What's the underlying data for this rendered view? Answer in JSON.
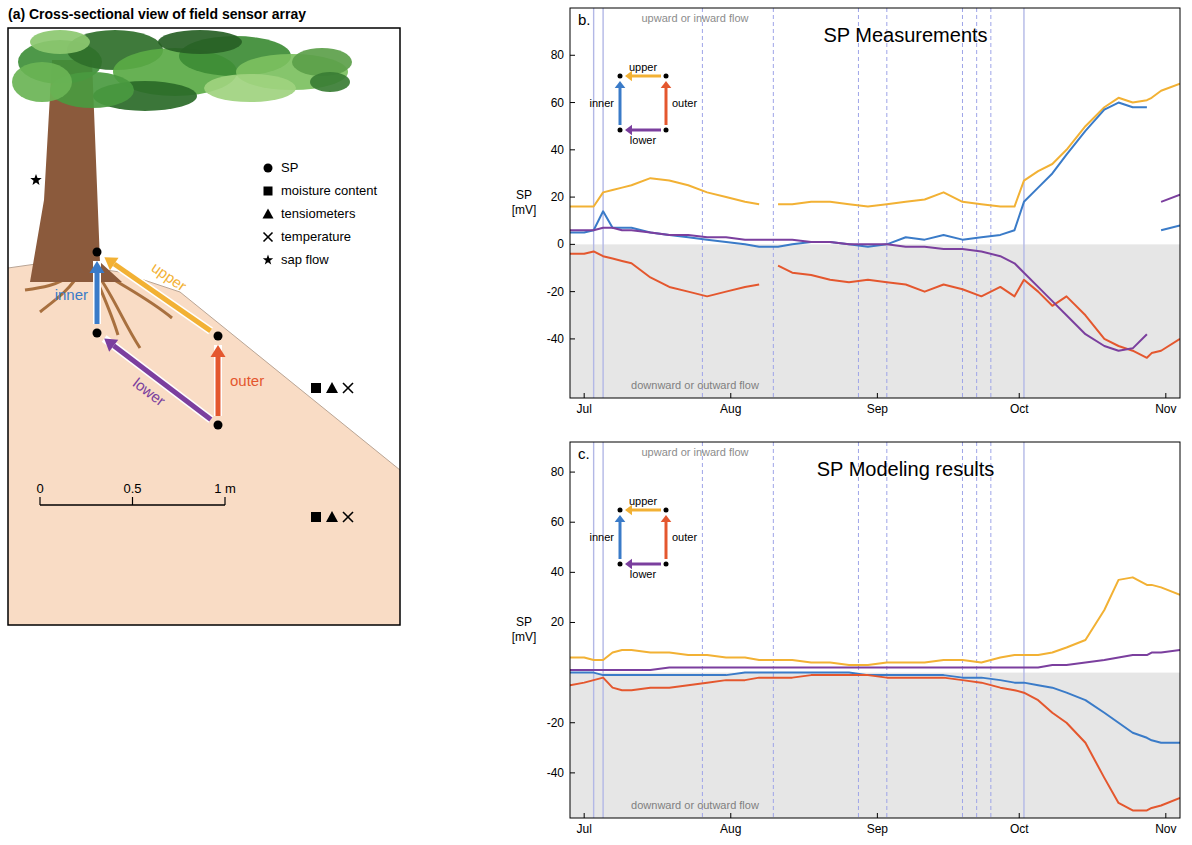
{
  "diagram": {
    "title": "(a) Cross-sectional view of field sensor array",
    "legend": [
      {
        "marker": "circle",
        "label": "SP"
      },
      {
        "marker": "square",
        "label": "moisture content"
      },
      {
        "marker": "triangle",
        "label": "tensiometers"
      },
      {
        "marker": "cross",
        "label": "temperature"
      },
      {
        "marker": "star",
        "label": "sap flow"
      }
    ],
    "arrows": [
      {
        "label": "inner",
        "color": "#3a7bc8"
      },
      {
        "label": "upper",
        "color": "#f2b134"
      },
      {
        "label": "outer",
        "color": "#e4572e"
      },
      {
        "label": "lower",
        "color": "#7b3f9e"
      }
    ],
    "scale_bar": {
      "ticks": [
        0,
        0.5,
        {
          "value": 1,
          "label": "1 m"
        }
      ]
    }
  },
  "chart_data": [
    {
      "type": "line",
      "panel": "b.",
      "title": "SP Measurements",
      "y_label": "SP [mV]",
      "annotations": [
        "upward or inward flow",
        "downward or outward flow"
      ],
      "legend": "upper left",
      "grid": false,
      "x": [
        -3,
        0,
        2,
        4,
        6,
        8,
        10,
        14,
        18,
        22,
        26,
        30,
        34,
        37,
        39,
        41,
        44,
        48,
        52,
        56,
        60,
        64,
        68,
        72,
        76,
        80,
        84,
        88,
        91,
        93,
        96,
        99,
        102,
        106,
        110,
        113,
        116,
        119,
        120,
        122,
        126
      ],
      "xlim": [
        -3,
        126
      ],
      "xticks": [
        {
          "value": 0,
          "label": "Jul"
        },
        {
          "value": 31,
          "label": "Aug"
        },
        {
          "value": 62,
          "label": "Sep"
        },
        {
          "value": 92,
          "label": "Oct"
        },
        {
          "value": 123,
          "label": "Nov"
        }
      ],
      "ylim": [
        -65,
        100
      ],
      "yticks": [
        -40,
        -20,
        0,
        20,
        40,
        60,
        80
      ],
      "series": [
        {
          "name": "upper",
          "color": "#f2b134",
          "values": [
            16,
            16,
            16,
            22,
            23,
            24,
            25,
            28,
            27,
            25,
            22,
            20,
            18,
            17,
            null,
            17,
            17,
            18,
            18,
            17,
            16,
            17,
            18,
            19,
            22,
            18,
            17,
            16,
            16,
            27,
            31,
            34,
            40,
            50,
            58,
            62,
            60,
            61,
            62,
            65,
            68
          ]
        },
        {
          "name": "inner",
          "color": "#3a7bc8",
          "values": [
            5,
            5,
            6,
            14,
            7,
            7,
            7,
            5,
            4,
            3,
            2,
            1,
            0,
            -1,
            -1,
            -1,
            0,
            1,
            1,
            0,
            -1,
            0,
            3,
            2,
            4,
            2,
            3,
            4,
            6,
            18,
            24,
            30,
            38,
            48,
            57,
            60,
            58,
            58,
            null,
            6,
            8
          ]
        },
        {
          "name": "outer",
          "color": "#e4572e",
          "values": [
            -4,
            -4,
            -3,
            -5,
            -6,
            -7,
            -8,
            -14,
            -18,
            -20,
            -22,
            -20,
            -18,
            -17,
            null,
            -9,
            -12,
            -13,
            -15,
            -16,
            -15,
            -16,
            -17,
            -20,
            -17,
            -19,
            -22,
            -18,
            -22,
            -15,
            -20,
            -26,
            -22,
            -30,
            -40,
            -43,
            -45,
            -48,
            -46,
            -45,
            -40
          ]
        },
        {
          "name": "lower",
          "color": "#7b3f9e",
          "values": [
            6,
            6,
            6,
            7,
            7,
            6,
            6,
            5,
            4,
            4,
            3,
            3,
            2,
            2,
            2,
            2,
            2,
            1,
            1,
            0,
            0,
            0,
            -1,
            -1,
            -2,
            -2,
            -3,
            -5,
            -8,
            -12,
            -18,
            -24,
            -30,
            -38,
            -43,
            -45,
            -44,
            -38,
            null,
            18,
            21
          ]
        }
      ],
      "event_lines": [
        {
          "x": 2,
          "line_style": "solid"
        },
        {
          "x": 4,
          "line_style": "solid"
        },
        {
          "x": 25,
          "line_style": "dashed"
        },
        {
          "x": 40,
          "line_style": "dashed"
        },
        {
          "x": 58,
          "line_style": "dashed"
        },
        {
          "x": 64,
          "line_style": "dashed"
        },
        {
          "x": 80,
          "line_style": "dashed"
        },
        {
          "x": 83,
          "line_style": "dashed"
        },
        {
          "x": 86,
          "line_style": "dashed"
        },
        {
          "x": 93,
          "line_style": "solid"
        }
      ]
    },
    {
      "type": "line",
      "panel": "c.",
      "title": "SP Modeling results",
      "y_label": "SP [mV]",
      "annotations": [
        "upward or inward flow",
        "downward or outward flow"
      ],
      "legend": "upper left",
      "grid": false,
      "x": [
        -3,
        0,
        2,
        4,
        6,
        8,
        10,
        14,
        18,
        22,
        26,
        30,
        34,
        37,
        39,
        41,
        44,
        48,
        52,
        56,
        60,
        64,
        68,
        72,
        76,
        80,
        84,
        88,
        91,
        93,
        96,
        99,
        102,
        106,
        110,
        113,
        116,
        119,
        120,
        122,
        126
      ],
      "xlim": [
        -3,
        126
      ],
      "xticks": [
        {
          "value": 0,
          "label": "Jul"
        },
        {
          "value": 31,
          "label": "Aug"
        },
        {
          "value": 62,
          "label": "Sep"
        },
        {
          "value": 92,
          "label": "Oct"
        },
        {
          "value": 123,
          "label": "Nov"
        }
      ],
      "ylim": [
        -58,
        92
      ],
      "yticks": [
        -40,
        -20,
        20,
        40,
        60,
        80
      ],
      "series": [
        {
          "name": "upper",
          "color": "#f2b134",
          "values": [
            6,
            6,
            5,
            5,
            8,
            9,
            9,
            8,
            8,
            7,
            7,
            6,
            6,
            5,
            5,
            5,
            5,
            4,
            4,
            3,
            3,
            4,
            4,
            4,
            5,
            5,
            4,
            6,
            7,
            7,
            7,
            8,
            10,
            13,
            25,
            37,
            38,
            35,
            35,
            34,
            31
          ]
        },
        {
          "name": "inner",
          "color": "#3a7bc8",
          "values": [
            0,
            0,
            0,
            -1,
            -1,
            -1,
            -1,
            -1,
            -1,
            -1,
            -1,
            -1,
            0,
            0,
            0,
            0,
            0,
            0,
            0,
            0,
            -1,
            -1,
            -1,
            -1,
            -1,
            -2,
            -2,
            -3,
            -4,
            -4,
            -5,
            -6,
            -8,
            -11,
            -16,
            -20,
            -24,
            -26,
            -27,
            -28,
            -28
          ]
        },
        {
          "name": "outer",
          "color": "#e4572e",
          "values": [
            -5,
            -4,
            -3,
            -2,
            -6,
            -7,
            -7,
            -6,
            -6,
            -5,
            -4,
            -3,
            -3,
            -2,
            -2,
            -2,
            -2,
            -1,
            -1,
            -1,
            -1,
            -2,
            -2,
            -2,
            -2,
            -3,
            -4,
            -6,
            -7,
            -8,
            -11,
            -16,
            -20,
            -28,
            -42,
            -52,
            -55,
            -55,
            -54,
            -53,
            -50
          ]
        },
        {
          "name": "lower",
          "color": "#7b3f9e",
          "values": [
            1,
            1,
            1,
            1,
            1,
            1,
            1,
            1,
            2,
            2,
            2,
            2,
            2,
            2,
            2,
            2,
            2,
            2,
            2,
            2,
            2,
            2,
            2,
            2,
            2,
            2,
            2,
            2,
            2,
            2,
            2,
            3,
            3,
            4,
            5,
            6,
            7,
            7,
            8,
            8,
            9
          ]
        }
      ],
      "event_lines": [
        {
          "x": 2,
          "line_style": "solid"
        },
        {
          "x": 4,
          "line_style": "solid"
        },
        {
          "x": 25,
          "line_style": "dashed"
        },
        {
          "x": 40,
          "line_style": "dashed"
        },
        {
          "x": 58,
          "line_style": "dashed"
        },
        {
          "x": 64,
          "line_style": "dashed"
        },
        {
          "x": 80,
          "line_style": "dashed"
        },
        {
          "x": 83,
          "line_style": "dashed"
        },
        {
          "x": 86,
          "line_style": "dashed"
        },
        {
          "x": 93,
          "line_style": "solid"
        }
      ]
    }
  ]
}
